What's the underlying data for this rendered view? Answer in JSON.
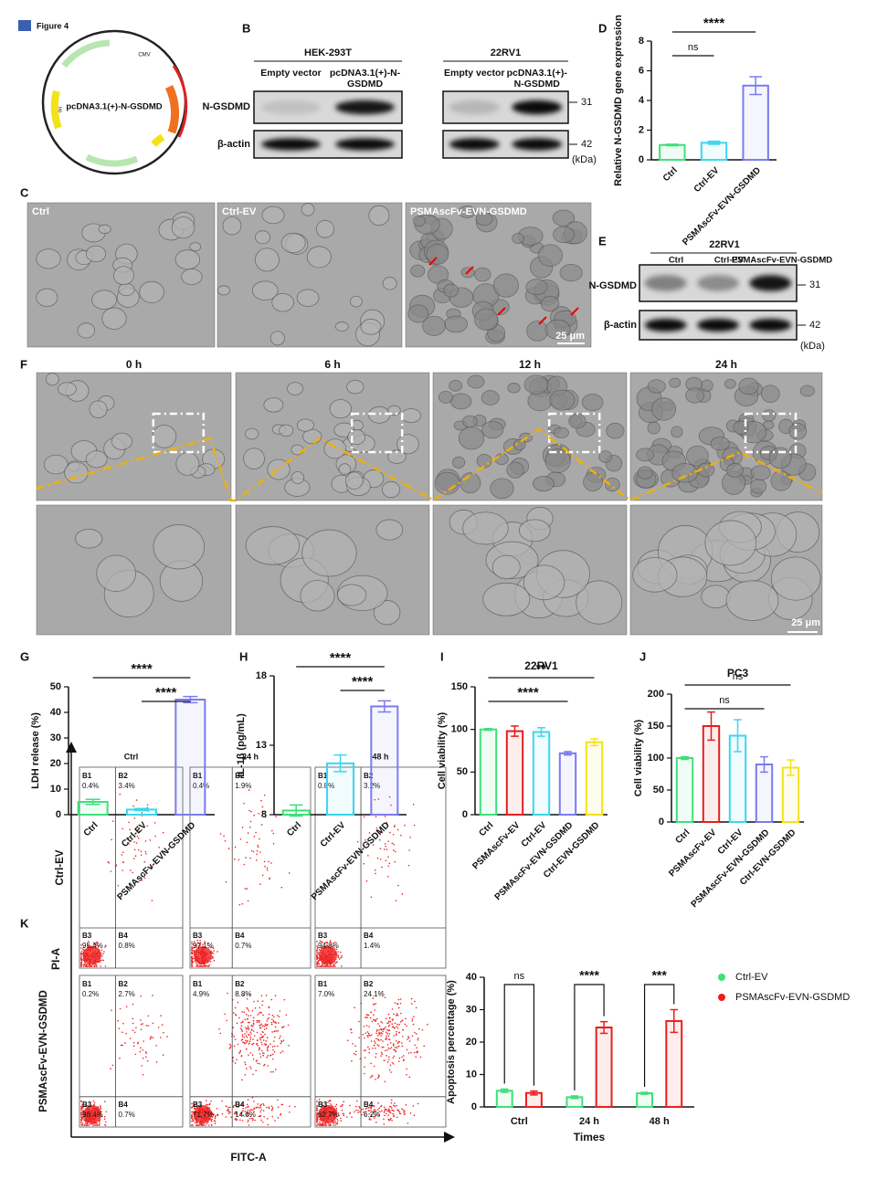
{
  "header": "Figure 4",
  "plasmid": {
    "name": "pcDNA3.1(+)-N-GSDMD",
    "promoter": "CMV",
    "origin": "ori"
  },
  "blot_b": {
    "letter": "B",
    "groups": [
      {
        "cell": "HEK-293T",
        "lanes": [
          "Empty vector",
          "pcDNA3.1(+)-N-GSDMD"
        ]
      },
      {
        "cell": "22RV1",
        "lanes": [
          "Empty vector",
          "pcDNA3.1(+)-N-GSDMD"
        ]
      }
    ],
    "proteins": [
      "N-GSDMD",
      "β-actin"
    ],
    "sizes": [
      "31",
      "42"
    ],
    "unit": "(kDa)"
  },
  "micro_c": {
    "letter": "C",
    "labels": [
      "Ctrl",
      "Ctrl-EV",
      "PSMAscFv-EVN-GSDMD"
    ],
    "scale": "25 μm"
  },
  "blot_e": {
    "letter": "E",
    "cell": "22RV1",
    "lanes": [
      "Ctrl",
      "Ctrl-EV",
      "PSMAscFv-EVN-GSDMD"
    ],
    "proteins": [
      "N-GSDMD",
      "β-actin"
    ],
    "sizes": [
      "31",
      "42"
    ],
    "unit": "(kDa)"
  },
  "time_f": {
    "letter": "F",
    "labels": [
      "0 h",
      "6 h",
      "12 h",
      "24 h"
    ],
    "scale": "25 μm"
  },
  "flow_k": {
    "letter": "K",
    "columns": [
      "Ctrl",
      "24 h",
      "48 h"
    ],
    "rows": [
      "Ctrl-EV",
      "PSMAscFv-EVN-GSDMD"
    ],
    "y_axis": "PI-A",
    "x_axis": "FITC-A",
    "quadrants": [
      "B1",
      "B2",
      "B3",
      "B4"
    ],
    "percent": [
      [
        [
          "0.4%",
          "3.4%",
          "95.4%",
          "0.8%"
        ],
        [
          "0.4%",
          "1.9%",
          "97.1%",
          "0.7%"
        ],
        [
          "0.8%",
          "3.2%",
          "94.8%",
          "1.4%"
        ]
      ],
      [
        [
          "0.2%",
          "2.7%",
          "96.4%",
          "0.7%"
        ],
        [
          "4.9%",
          "8.8%",
          "71.7%",
          "14.6%"
        ],
        [
          "7.0%",
          "24.1%",
          "62.7%",
          "6.2%"
        ]
      ]
    ]
  },
  "chart_data": [
    {
      "type": "bar",
      "label": "D",
      "ylabel": "Relative N-GSDMD gene expression",
      "categories": [
        "Ctrl",
        "Ctrl-EV",
        "PSMAscFv-EVN-GSDMD"
      ],
      "values": [
        1.0,
        1.15,
        5.0
      ],
      "errors": [
        0.05,
        0.1,
        0.6
      ],
      "colors": [
        "#3ee07a",
        "#3ad7f0",
        "#7b7bf0"
      ],
      "ylim": [
        0,
        8
      ],
      "yticks": [
        0,
        2,
        4,
        6,
        8
      ],
      "annotations": [
        {
          "text": "****",
          "span": [
            0,
            2
          ]
        },
        {
          "text": "ns",
          "span": [
            0,
            1
          ]
        }
      ]
    },
    {
      "type": "bar",
      "label": "G",
      "ylabel": "LDH release (%)",
      "categories": [
        "Ctrl",
        "Ctrl-EV",
        "PSMAscFv-EVN-GSDMD"
      ],
      "values": [
        5,
        2,
        45
      ],
      "errors": [
        1,
        0.4,
        1.2
      ],
      "colors": [
        "#3ee07a",
        "#3ad7f0",
        "#7b7bf0"
      ],
      "ylim": [
        0,
        50
      ],
      "yticks": [
        0,
        10,
        20,
        30,
        40,
        50
      ],
      "annotations": [
        {
          "text": "****",
          "span": [
            0,
            2
          ]
        },
        {
          "text": "****",
          "span": [
            1,
            2
          ]
        }
      ]
    },
    {
      "type": "bar",
      "label": "H",
      "ylabel": "IL-1β (pg/mL)",
      "categories": [
        "Ctrl",
        "Ctrl-EV",
        "PSMAscFv-EVN-GSDMD"
      ],
      "values": [
        8.3,
        11.7,
        15.8
      ],
      "errors": [
        0.4,
        0.6,
        0.4
      ],
      "colors": [
        "#3ee07a",
        "#3ad7f0",
        "#7b7bf0"
      ],
      "ylim": [
        8,
        18
      ],
      "yticks": [
        8,
        13,
        18
      ],
      "annotations": [
        {
          "text": "****",
          "span": [
            0,
            2
          ]
        },
        {
          "text": "****",
          "span": [
            1,
            2
          ]
        }
      ]
    },
    {
      "type": "bar",
      "label": "I",
      "title": "22RV1",
      "ylabel": "Cell viability (%)",
      "categories": [
        "Ctrl",
        "PSMAscFv-EV",
        "Ctrl-EV",
        "PSMAscFv-EVN-GSDMD",
        "Ctrl-EVN-GSDMD"
      ],
      "values": [
        100,
        98,
        97,
        72,
        85
      ],
      "errors": [
        1,
        6,
        5,
        2,
        4
      ],
      "colors": [
        "#3ee07a",
        "#e02020",
        "#3ad7f0",
        "#7b7bf0",
        "#f2e21a"
      ],
      "ylim": [
        0,
        150
      ],
      "yticks": [
        0,
        50,
        100,
        150
      ],
      "annotations": [
        {
          "text": "**",
          "span": [
            0,
            4
          ]
        },
        {
          "text": "****",
          "span": [
            0,
            3
          ]
        }
      ]
    },
    {
      "type": "bar",
      "label": "J",
      "title": "PC3",
      "ylabel": "Cell viability (%)",
      "categories": [
        "Ctrl",
        "PSMAscFv-EV",
        "Ctrl-EV",
        "PSMAscFv-EVN-GSDMD",
        "Ctrl-EVN-GSDMD"
      ],
      "values": [
        100,
        150,
        135,
        90,
        85
      ],
      "errors": [
        2,
        22,
        25,
        12,
        12
      ],
      "colors": [
        "#3ee07a",
        "#e02020",
        "#3ad7f0",
        "#7b7bf0",
        "#f2e21a"
      ],
      "ylim": [
        0,
        200
      ],
      "yticks": [
        0,
        50,
        100,
        150,
        200
      ],
      "annotations": [
        {
          "text": "ns",
          "span": [
            0,
            4
          ]
        },
        {
          "text": "ns",
          "span": [
            0,
            3
          ]
        }
      ]
    },
    {
      "type": "bar",
      "ylabel": "Apoptosis percentage (%)",
      "xlabel": "Times",
      "categories": [
        "Ctrl",
        "24 h",
        "48 h"
      ],
      "series": [
        {
          "name": "Ctrl-EV",
          "color": "#3ee07a",
          "values": [
            5,
            3,
            4.2
          ],
          "errors": [
            0.5,
            0.4,
            0.3
          ]
        },
        {
          "name": "PSMAscFv-EVN-GSDMD",
          "color": "#ee1c1c",
          "values": [
            4.3,
            24.5,
            26.5
          ],
          "errors": [
            0.6,
            1.8,
            3.5
          ]
        }
      ],
      "ylim": [
        0,
        40
      ],
      "yticks": [
        0,
        10,
        20,
        30,
        40
      ],
      "annotations": [
        "ns",
        "****",
        "***"
      ],
      "legend": "upper right"
    }
  ]
}
